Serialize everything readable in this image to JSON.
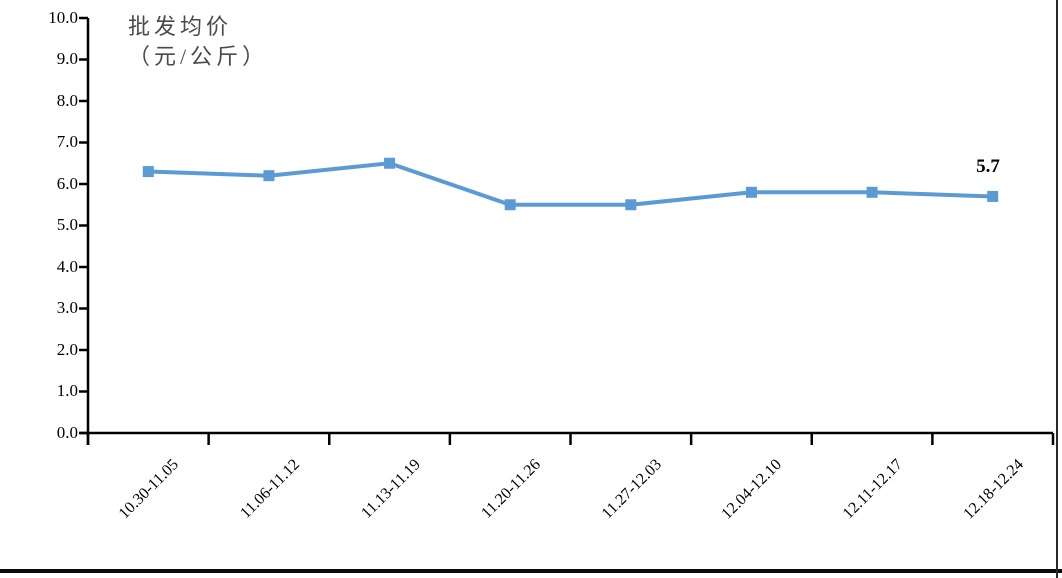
{
  "chart_data": {
    "type": "line",
    "title_lines": [
      "批发均价",
      "（元/公斤）"
    ],
    "categories": [
      "10.30-11.05",
      "11.06-11.12",
      "11.13-11.19",
      "11.20-11.26",
      "11.27-12.03",
      "12.04-12.10",
      "12.11-12.17",
      "12.18-12.24"
    ],
    "values": [
      6.3,
      6.2,
      6.5,
      5.5,
      5.5,
      5.8,
      5.8,
      5.7
    ],
    "last_point_label": "5.7",
    "ylim": [
      0,
      10
    ],
    "y_tick_step": 1.0,
    "y_tick_labels": [
      "0.0",
      "1.0",
      "2.0",
      "3.0",
      "4.0",
      "5.0",
      "6.0",
      "7.0",
      "8.0",
      "9.0",
      "10.0"
    ],
    "xlabel": "",
    "ylabel": "批发均价（元/公斤）",
    "grid": false,
    "legend_position": "none",
    "marker": "square",
    "line_color": "#5B9BD5",
    "axis_color": "#000000",
    "title_color": "#4a4a4a",
    "label_rotation_deg": 45
  }
}
